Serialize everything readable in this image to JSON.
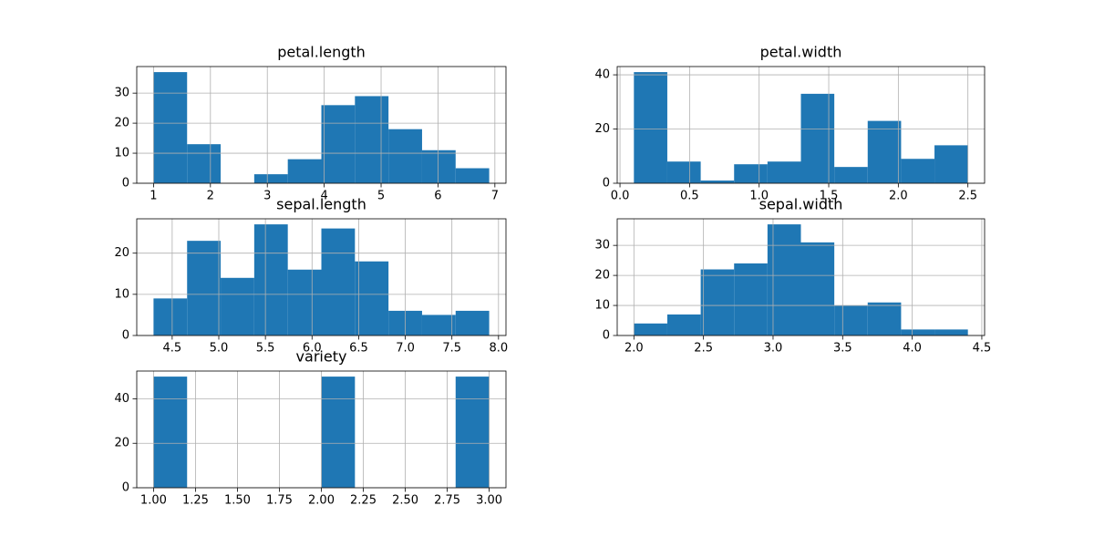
{
  "chart_data": [
    {
      "type": "histogram",
      "title": "petal.length",
      "color": "#1f77b4",
      "grid": true,
      "bins": [
        1.0,
        1.59,
        2.18,
        2.77,
        3.36,
        3.95,
        4.54,
        5.13,
        5.72,
        6.31,
        6.9
      ],
      "counts": [
        37,
        13,
        0,
        3,
        8,
        26,
        29,
        18,
        11,
        5
      ],
      "xlim": [
        0.705,
        7.195
      ],
      "ylim": [
        0,
        38.85
      ],
      "xticks": [
        1,
        2,
        3,
        4,
        5,
        6,
        7
      ],
      "yticks": [
        0,
        10,
        20,
        30
      ]
    },
    {
      "type": "histogram",
      "title": "petal.width",
      "color": "#1f77b4",
      "grid": true,
      "bins": [
        0.1,
        0.34,
        0.58,
        0.82,
        1.06,
        1.3,
        1.54,
        1.78,
        2.02,
        2.26,
        2.5
      ],
      "counts": [
        41,
        8,
        1,
        7,
        8,
        33,
        6,
        23,
        9,
        14
      ],
      "xlim": [
        -0.02,
        2.62
      ],
      "ylim": [
        0,
        43.05
      ],
      "xticks": [
        {
          "value": 0,
          "label": "0.0"
        },
        0.5,
        {
          "value": 1,
          "label": "1.0"
        },
        1.5,
        {
          "value": 2,
          "label": "2.0"
        },
        2.5
      ],
      "yticks": [
        0,
        20,
        40
      ]
    },
    {
      "type": "histogram",
      "title": "sepal.length",
      "color": "#1f77b4",
      "grid": true,
      "bins": [
        4.3,
        4.66,
        5.02,
        5.38,
        5.74,
        6.1,
        6.46,
        6.82,
        7.18,
        7.54,
        7.9
      ],
      "counts": [
        9,
        23,
        14,
        27,
        16,
        26,
        18,
        6,
        5,
        6
      ],
      "xlim": [
        4.12,
        8.08
      ],
      "ylim": [
        0,
        28.35
      ],
      "xticks": [
        4.5,
        {
          "value": 5,
          "label": "5.0"
        },
        5.5,
        {
          "value": 6,
          "label": "6.0"
        },
        6.5,
        {
          "value": 7,
          "label": "7.0"
        },
        7.5,
        {
          "value": 8,
          "label": "8.0"
        }
      ],
      "yticks": [
        0,
        10,
        20
      ]
    },
    {
      "type": "histogram",
      "title": "sepal.width",
      "color": "#1f77b4",
      "grid": true,
      "bins": [
        2.0,
        2.24,
        2.48,
        2.72,
        2.96,
        3.2,
        3.44,
        3.68,
        3.92,
        4.16,
        4.4
      ],
      "counts": [
        4,
        7,
        22,
        24,
        37,
        31,
        10,
        11,
        2,
        2
      ],
      "xlim": [
        1.88,
        4.52
      ],
      "ylim": [
        0,
        38.85
      ],
      "xticks": [
        {
          "value": 2,
          "label": "2.0"
        },
        2.5,
        {
          "value": 3,
          "label": "3.0"
        },
        3.5,
        {
          "value": 4,
          "label": "4.0"
        },
        4.5
      ],
      "yticks": [
        0,
        10,
        20,
        30
      ]
    },
    {
      "type": "histogram",
      "title": "variety",
      "color": "#1f77b4",
      "grid": true,
      "bins": [
        1.0,
        1.2,
        1.4,
        1.6,
        1.8,
        2.0,
        2.2,
        2.4,
        2.6,
        2.8,
        3.0
      ],
      "counts": [
        50,
        0,
        0,
        0,
        0,
        50,
        0,
        0,
        0,
        50
      ],
      "xlim": [
        0.9,
        3.1
      ],
      "ylim": [
        0,
        52.5
      ],
      "xticks": [
        {
          "value": 1,
          "label": "1.00"
        },
        1.25,
        {
          "value": 1.5,
          "label": "1.50"
        },
        1.75,
        {
          "value": 2,
          "label": "2.00"
        },
        2.25,
        {
          "value": 2.5,
          "label": "2.50"
        },
        2.75,
        {
          "value": 3,
          "label": "3.00"
        }
      ],
      "yticks": [
        0,
        20,
        40
      ]
    }
  ]
}
